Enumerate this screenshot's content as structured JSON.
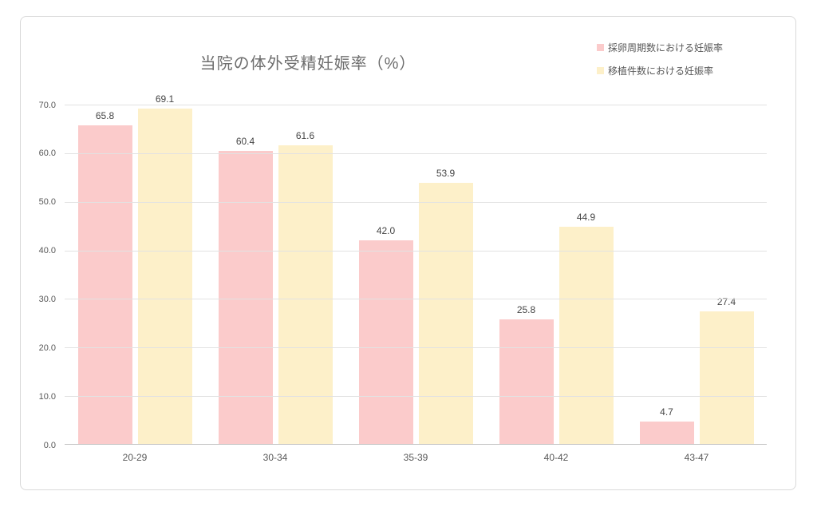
{
  "chart_data": {
    "type": "bar",
    "title": "当院の体外受精妊娠率（%）",
    "categories": [
      "20-29",
      "30-34",
      "35-39",
      "40-42",
      "43-47"
    ],
    "series": [
      {
        "name": "採卵周期数における妊娠率",
        "color": "#fbcbcb",
        "values": [
          65.8,
          60.4,
          42.0,
          25.8,
          4.7
        ]
      },
      {
        "name": "移植件数における妊娠率",
        "color": "#fdf0c9",
        "values": [
          69.1,
          61.6,
          53.9,
          44.9,
          27.4
        ]
      }
    ],
    "value_labels": [
      "65.8",
      "60.4",
      "42.0",
      "25.8",
      "4.7",
      "69.1",
      "61.6",
      "53.9",
      "44.9",
      "27.4"
    ],
    "ylim": [
      0,
      70
    ],
    "ytick_interval": 10,
    "ytick_labels": [
      "0.0",
      "10.0",
      "20.0",
      "30.0",
      "40.0",
      "50.0",
      "60.0",
      "70.0"
    ],
    "grid": true,
    "legend_position": "top-right",
    "colors": {
      "grid": "#e2e2e2",
      "axis_line": "#c3c3c3",
      "title_text": "#6e6e6e",
      "tick_text": "#595959",
      "value_text": "#454545",
      "card_border": "#d9d9d9"
    }
  }
}
